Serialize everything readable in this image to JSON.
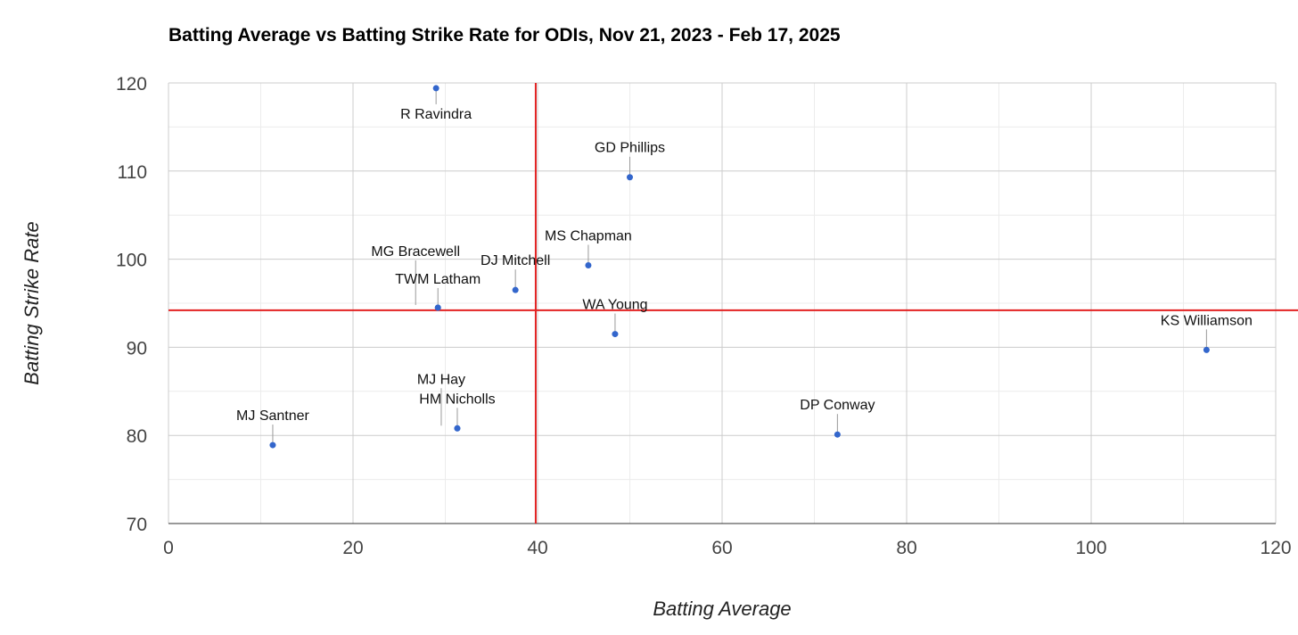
{
  "chart_data": {
    "type": "scatter",
    "title": "Batting Average vs Batting Strike Rate for ODIs, Nov 21, 2023 - Feb 17, 2025",
    "xlabel": "Batting Average",
    "ylabel": "Batting Strike Rate",
    "xlim": [
      0,
      120
    ],
    "ylim": [
      70,
      120
    ],
    "xticks": [
      "0",
      "20",
      "40",
      "60",
      "80",
      "100",
      "120"
    ],
    "yticks": [
      "70",
      "80",
      "90",
      "100",
      "110",
      "120"
    ],
    "grid": true,
    "reference_lines": {
      "x": 39.8,
      "y": 94.2,
      "color": "#e32222"
    },
    "point_color": "#3366cc",
    "points": [
      {
        "name": "R Ravindra",
        "x": 29.0,
        "y": 119.4
      },
      {
        "name": "GD Phillips",
        "x": 50.0,
        "y": 109.3
      },
      {
        "name": "MS Chapman",
        "x": 45.5,
        "y": 99.3
      },
      {
        "name": "MG Bracewell",
        "x": 29.2,
        "y": 94.5
      },
      {
        "name": "DJ Mitchell",
        "x": 37.6,
        "y": 96.5
      },
      {
        "name": "TWM Latham",
        "x": 29.2,
        "y": 94.5
      },
      {
        "name": "WA Young",
        "x": 48.4,
        "y": 91.5
      },
      {
        "name": "KS Williamson",
        "x": 112.5,
        "y": 89.7
      },
      {
        "name": "MJ Hay",
        "x": 31.3,
        "y": 80.8
      },
      {
        "name": "HM Nicholls",
        "x": 31.3,
        "y": 80.8
      },
      {
        "name": "MJ Santner",
        "x": 11.3,
        "y": 78.9
      },
      {
        "name": "DP Conway",
        "x": 72.5,
        "y": 80.1
      }
    ]
  }
}
